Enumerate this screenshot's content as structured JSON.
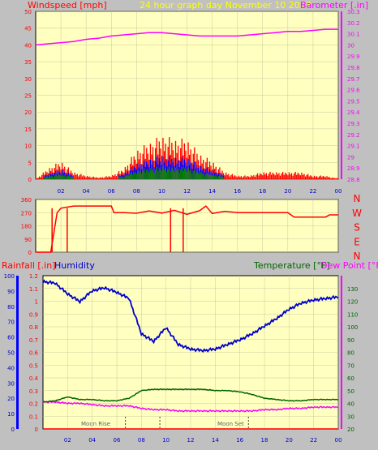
{
  "colors": {
    "bg": "#c0c0c0",
    "plot_bg": "#ffffc0",
    "wind": "#ff0000",
    "gust_avg": "#0000ff",
    "wind_low": "#008000",
    "baro": "#ff00ff",
    "title": "#ffff00",
    "humidity": "#0000cc",
    "temp": "#006400",
    "dew": "#ff00ff",
    "rain": "#ff0000",
    "moon": "#606060"
  },
  "header": {
    "windspeed": "Windspeed [mph]",
    "title": "24 hour graph day   November 10 2023",
    "barometer": "Barometer [.in]"
  },
  "wind_axis": [
    "50",
    "45",
    "40",
    "35",
    "30",
    "25",
    "20",
    "15",
    "10",
    "5",
    "0"
  ],
  "baro_axis": [
    "30.3",
    "30.2",
    "30.1",
    "30",
    "29.9",
    "29.8",
    "29.7",
    "29.6",
    "29.5",
    "29.4",
    "29.3",
    "29.2",
    "29.1",
    "29",
    "28.9",
    "28.8"
  ],
  "hours": [
    "02",
    "04",
    "06",
    "08",
    "10",
    "12",
    "14",
    "16",
    "18",
    "20",
    "22",
    "00"
  ],
  "dir_axis": [
    "360",
    "270",
    "180",
    "90",
    "0"
  ],
  "dir_letters": [
    "N",
    "W",
    "S",
    "E",
    "N"
  ],
  "lower_header": {
    "rainfall": "Rainfall [.in]",
    "humidity": "Humidity",
    "temperature": "Temperature [°F]",
    "dewpoint": "Dew Point [°F]"
  },
  "rain_axis": [
    "1.2",
    "1.1",
    "1",
    "0.9",
    "0.8",
    "0.7",
    "0.6",
    "0.5",
    "0.4",
    "0.3",
    "0.2",
    "0.1",
    "0"
  ],
  "humidity_axis": [
    "100",
    "90",
    "80",
    "70",
    "60",
    "50",
    "40",
    "30",
    "20",
    "10",
    "0"
  ],
  "temp_axis": [
    "130",
    "120",
    "110",
    "100",
    "90",
    "80",
    "70",
    "60",
    "50",
    "40",
    "30",
    "20"
  ],
  "moon": {
    "rise": "Moon Rise",
    "set": "Moon Set"
  },
  "chart_data": [
    {
      "type": "line",
      "panel": "wind-barometer",
      "title": "24 hour graph day   November 10 2023",
      "x_hours": [
        0,
        1,
        2,
        3,
        4,
        5,
        6,
        7,
        8,
        9,
        10,
        11,
        12,
        13,
        14,
        15,
        16,
        17,
        18,
        19,
        20,
        21,
        22,
        23,
        24
      ],
      "series": [
        {
          "name": "Barometer [.in]",
          "axis": "right",
          "ylim": [
            28.8,
            30.3
          ],
          "values": [
            30.0,
            30.01,
            30.02,
            30.03,
            30.05,
            30.06,
            30.08,
            30.09,
            30.1,
            30.11,
            30.11,
            30.1,
            30.09,
            30.08,
            30.08,
            30.08,
            30.08,
            30.09,
            30.1,
            30.11,
            30.12,
            30.12,
            30.13,
            30.14,
            30.14
          ]
        },
        {
          "name": "Windspeed [mph]",
          "axis": "left",
          "ylim": [
            0,
            50
          ],
          "values": [
            0,
            3,
            5,
            2,
            1,
            0.5,
            1,
            3,
            8,
            10,
            12,
            11,
            11,
            7,
            5,
            2,
            1,
            1,
            2,
            2,
            2,
            2,
            1,
            1,
            0
          ]
        }
      ]
    },
    {
      "type": "line",
      "panel": "wind-direction",
      "ylim": [
        0,
        360
      ],
      "x_hours": [
        0,
        1.2,
        1.7,
        2,
        3,
        4,
        5,
        6,
        6.2,
        7,
        8,
        9,
        10,
        11,
        12,
        13,
        13.5,
        14,
        15,
        16,
        17,
        18,
        19,
        20,
        20.5,
        21,
        22,
        23,
        23.3,
        24
      ],
      "values": [
        0,
        0,
        270,
        300,
        315,
        315,
        315,
        315,
        270,
        270,
        275,
        270,
        270,
        280,
        270,
        280,
        300,
        270,
        270,
        270,
        270,
        270,
        270,
        270,
        240,
        240,
        240,
        240,
        255,
        255
      ]
    },
    {
      "type": "line",
      "panel": "humidity-temp-dew",
      "x_hours": [
        0,
        1,
        2,
        3,
        4,
        5,
        6,
        7,
        8,
        9,
        10,
        11,
        12,
        13,
        14,
        15,
        16,
        17,
        18,
        19,
        20,
        21,
        22,
        23,
        24
      ],
      "series": [
        {
          "name": "Humidity",
          "axis": "humidity",
          "ylim": [
            0,
            100
          ],
          "values": [
            96,
            95,
            88,
            83,
            90,
            92,
            89,
            85,
            62,
            57,
            66,
            55,
            52,
            51,
            52,
            55,
            58,
            62,
            67,
            72,
            78,
            82,
            84,
            85,
            86
          ]
        },
        {
          "name": "Temperature [°F]",
          "axis": "temp",
          "ylim": [
            20,
            140
          ],
          "values": [
            41,
            42,
            45,
            43,
            43,
            42,
            42,
            44,
            50,
            51,
            51,
            51,
            51,
            51,
            50,
            50,
            49,
            47,
            44,
            43,
            42,
            42,
            43,
            43,
            43
          ]
        },
        {
          "name": "Dew Point [°F]",
          "axis": "temp",
          "ylim": [
            20,
            140
          ],
          "values": [
            41,
            41,
            40,
            40,
            39,
            38,
            38,
            38,
            36,
            35,
            35,
            34,
            34,
            34,
            34,
            34,
            34,
            34,
            35,
            35,
            36,
            36,
            37,
            37,
            37
          ]
        },
        {
          "name": "Rainfall [.in]",
          "axis": "rain",
          "ylim": [
            0,
            1.2
          ],
          "values": [
            0,
            0,
            0,
            0,
            0,
            0,
            0,
            0,
            0,
            0,
            0,
            0,
            0,
            0,
            0,
            0,
            0,
            0,
            0,
            0,
            0,
            0,
            0,
            0,
            0
          ]
        }
      ]
    }
  ]
}
